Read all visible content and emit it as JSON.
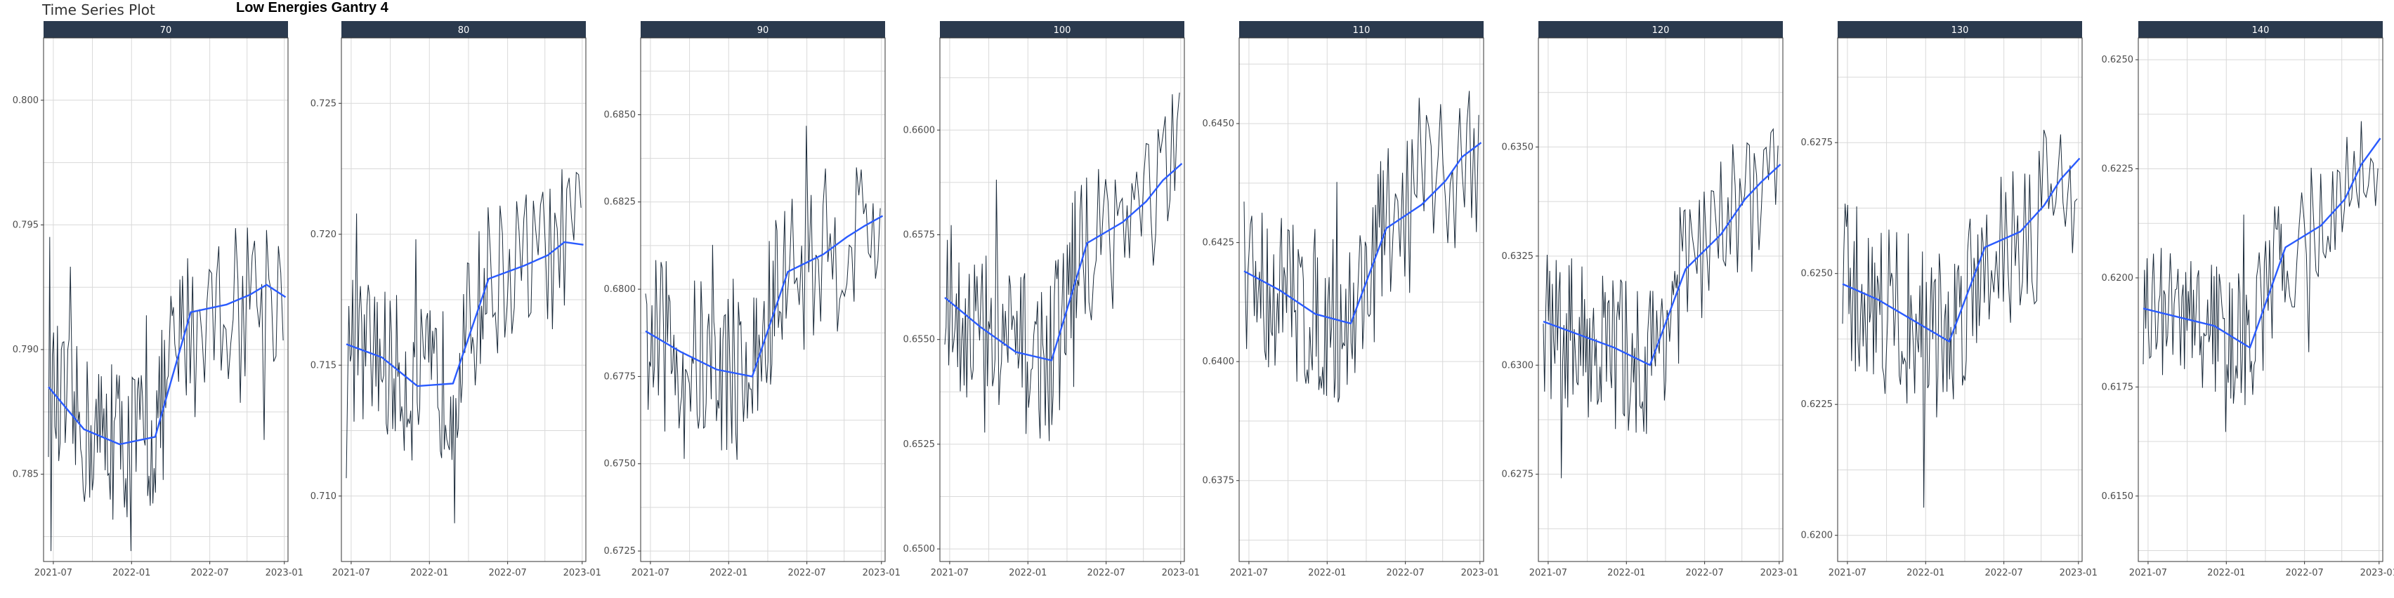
{
  "app": {
    "title": "Time Series Plot"
  },
  "chart_data": {
    "type": "line",
    "title": "Low Energies Gantry 4",
    "xlabel": "",
    "ylabel": "",
    "x_ticks": [
      "2021-07",
      "2022-01",
      "2022-07",
      "2023-01"
    ],
    "x_range": [
      "2021-06-20",
      "2023-01-15"
    ],
    "grid": true,
    "colors": {
      "strip_bg": "#2b3a4e",
      "raw_line": "#1a2a3a",
      "smooth_line": "#2a5bff",
      "grid": "#d9d9d9",
      "panel_border": "#333333"
    },
    "series_names": [
      "raw",
      "smoothed"
    ],
    "panels": [
      {
        "label": "70",
        "ylim": [
          0.7815,
          0.8025
        ],
        "yticks": [
          "0.785",
          "0.790",
          "0.795",
          "0.800"
        ],
        "tick_values": [
          0.785,
          0.79,
          0.795,
          0.8
        ],
        "base": 0.788,
        "amp": 0.0032,
        "smooth": [
          [
            0,
            0.7885
          ],
          [
            0.15,
            0.7868
          ],
          [
            0.3,
            0.7862
          ],
          [
            0.45,
            0.7865
          ],
          [
            0.6,
            0.7915
          ],
          [
            0.75,
            0.7918
          ],
          [
            0.85,
            0.7922
          ],
          [
            0.92,
            0.7926
          ],
          [
            1,
            0.7921
          ]
        ]
      },
      {
        "label": "80",
        "ylim": [
          0.7075,
          0.7275
        ],
        "yticks": [
          "0.710",
          "0.715",
          "0.720",
          "0.725"
        ],
        "tick_values": [
          0.71,
          0.715,
          0.72,
          0.725
        ],
        "base": 0.7145,
        "amp": 0.003,
        "smooth": [
          [
            0,
            0.7158
          ],
          [
            0.15,
            0.7153
          ],
          [
            0.3,
            0.7142
          ],
          [
            0.45,
            0.7143
          ],
          [
            0.6,
            0.7183
          ],
          [
            0.75,
            0.7188
          ],
          [
            0.85,
            0.7192
          ],
          [
            0.92,
            0.7197
          ],
          [
            1,
            0.7196
          ]
        ]
      },
      {
        "label": "90",
        "ylim": [
          0.6722,
          0.6872
        ],
        "yticks": [
          "0.6725",
          "0.6750",
          "0.6775",
          "0.6800",
          "0.6825",
          "0.6850"
        ],
        "tick_values": [
          0.6725,
          0.675,
          0.6775,
          0.68,
          0.6825,
          0.685
        ],
        "base": 0.6782,
        "amp": 0.0025,
        "smooth": [
          [
            0,
            0.6788
          ],
          [
            0.15,
            0.6782
          ],
          [
            0.3,
            0.6777
          ],
          [
            0.45,
            0.6775
          ],
          [
            0.6,
            0.6805
          ],
          [
            0.75,
            0.681
          ],
          [
            0.85,
            0.6815
          ],
          [
            0.92,
            0.6818
          ],
          [
            1,
            0.6821
          ]
        ]
      },
      {
        "label": "100",
        "ylim": [
          0.6497,
          0.6622
        ],
        "yticks": [
          "0.6500",
          "0.6525",
          "0.6550",
          "0.6575",
          "0.6600"
        ],
        "tick_values": [
          0.65,
          0.6525,
          0.655,
          0.6575,
          0.66
        ],
        "base": 0.6552,
        "amp": 0.002,
        "smooth": [
          [
            0,
            0.656
          ],
          [
            0.15,
            0.6553
          ],
          [
            0.3,
            0.6547
          ],
          [
            0.45,
            0.6545
          ],
          [
            0.6,
            0.6573
          ],
          [
            0.75,
            0.6578
          ],
          [
            0.85,
            0.6583
          ],
          [
            0.92,
            0.6588
          ],
          [
            1,
            0.6592
          ]
        ]
      },
      {
        "label": "110",
        "ylim": [
          0.6358,
          0.6468
        ],
        "yticks": [
          "0.6375",
          "0.6400",
          "0.6425",
          "0.6450"
        ],
        "tick_values": [
          0.6375,
          0.64,
          0.6425,
          0.645
        ],
        "base": 0.6412,
        "amp": 0.0018,
        "smooth": [
          [
            0,
            0.6419
          ],
          [
            0.15,
            0.6415
          ],
          [
            0.3,
            0.641
          ],
          [
            0.45,
            0.6408
          ],
          [
            0.6,
            0.6428
          ],
          [
            0.75,
            0.6433
          ],
          [
            0.85,
            0.6438
          ],
          [
            0.92,
            0.6443
          ],
          [
            1,
            0.6446
          ]
        ]
      },
      {
        "label": "120",
        "ylim": [
          0.6255,
          0.6375
        ],
        "yticks": [
          "0.6275",
          "0.6300",
          "0.6325",
          "0.6350"
        ],
        "tick_values": [
          0.6275,
          0.63,
          0.6325,
          0.635
        ],
        "base": 0.6305,
        "amp": 0.0018,
        "smooth": [
          [
            0,
            0.631
          ],
          [
            0.15,
            0.6307
          ],
          [
            0.3,
            0.6304
          ],
          [
            0.45,
            0.63
          ],
          [
            0.6,
            0.6322
          ],
          [
            0.75,
            0.633
          ],
          [
            0.85,
            0.6338
          ],
          [
            0.92,
            0.6342
          ],
          [
            1,
            0.6346
          ]
        ]
      },
      {
        "label": "130",
        "ylim": [
          0.6195,
          0.6295
        ],
        "yticks": [
          "0.6200",
          "0.6225",
          "0.6250",
          "0.6275"
        ],
        "tick_values": [
          0.62,
          0.6225,
          0.625,
          0.6275
        ],
        "base": 0.6243,
        "amp": 0.0017,
        "smooth": [
          [
            0,
            0.6248
          ],
          [
            0.15,
            0.6245
          ],
          [
            0.3,
            0.6241
          ],
          [
            0.45,
            0.6237
          ],
          [
            0.6,
            0.6255
          ],
          [
            0.75,
            0.6258
          ],
          [
            0.85,
            0.6263
          ],
          [
            0.92,
            0.6268
          ],
          [
            1,
            0.6272
          ]
        ]
      },
      {
        "label": "140",
        "ylim": [
          0.6135,
          0.6255
        ],
        "yticks": [
          "0.6150",
          "0.6175",
          "0.6200",
          "0.6225",
          "0.6250"
        ],
        "tick_values": [
          0.615,
          0.6175,
          0.62,
          0.6225,
          0.625
        ],
        "base": 0.619,
        "amp": 0.0016,
        "smooth": [
          [
            0,
            0.6193
          ],
          [
            0.15,
            0.6191
          ],
          [
            0.3,
            0.6189
          ],
          [
            0.45,
            0.6184
          ],
          [
            0.6,
            0.6207
          ],
          [
            0.75,
            0.6212
          ],
          [
            0.85,
            0.6218
          ],
          [
            0.92,
            0.6226
          ],
          [
            1,
            0.6232
          ]
        ]
      }
    ]
  }
}
